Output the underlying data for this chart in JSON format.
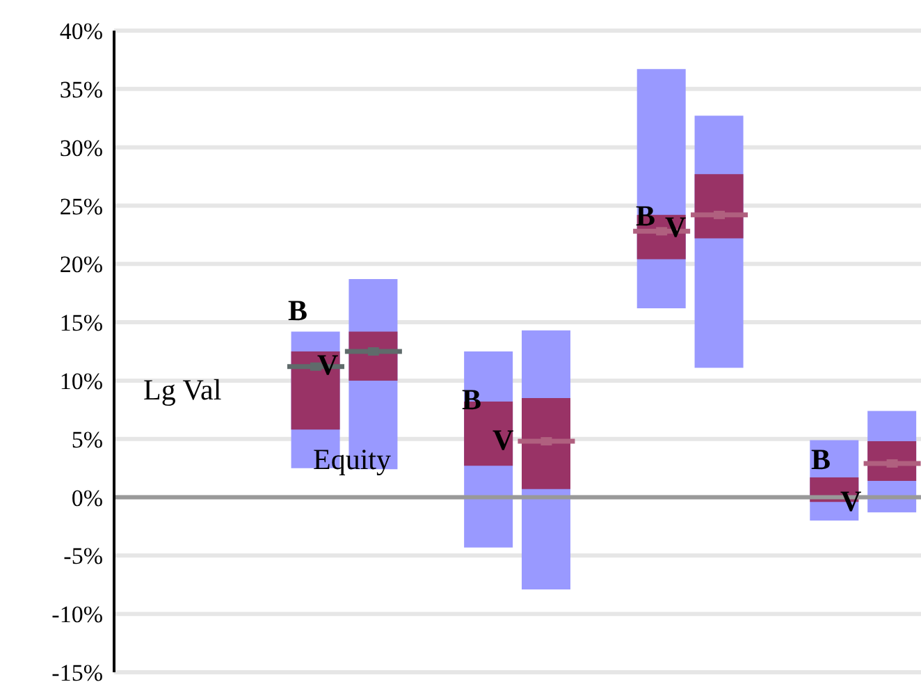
{
  "chart_data": {
    "type": "bar",
    "categories": [
      null,
      null,
      null,
      null,
      null,
      null,
      null,
      null,
      null,
      null,
      null,
      null,
      null,
      null
    ],
    "series": [
      {
        "color": "#9999ff",
        "base": [
          null,
          null,
          null,
          2.5,
          2.4,
          null,
          -4.3,
          -7.9,
          null,
          16.2,
          11.1,
          null,
          -2.0,
          -1.3
        ],
        "values": [
          null,
          null,
          null,
          11.7,
          16.3,
          null,
          16.8,
          22.2,
          null,
          20.5,
          21.6,
          null,
          6.9,
          8.7
        ]
      },
      {
        "color": "#993366",
        "base": [
          null,
          null,
          null,
          5.8,
          10.0,
          null,
          2.7,
          0.7,
          null,
          20.4,
          22.2,
          null,
          -0.4,
          1.4
        ],
        "values": [
          null,
          null,
          null,
          6.7,
          4.2,
          null,
          5.5,
          7.8,
          null,
          3.8,
          5.5,
          null,
          2.1,
          3.4
        ]
      },
      {
        "type": "scatter",
        "color": "#5f6b6b",
        "colors": [
          null,
          null,
          null,
          "#5f6b6b",
          "#5f6b6b",
          null,
          null,
          "#b0607f",
          null,
          "#b0607f",
          "#b0607f",
          null,
          null,
          "#b0607f"
        ],
        "values": [
          null,
          null,
          null,
          11.2,
          12.5,
          null,
          null,
          4.8,
          null,
          22.8,
          24.2,
          null,
          null,
          2.9
        ]
      }
    ],
    "ylim": [
      -15,
      40
    ],
    "yticks": [
      {
        "value": -15,
        "label": "-15%"
      },
      {
        "value": -10,
        "label": "-10%"
      },
      {
        "value": -5,
        "label": "-5%"
      },
      {
        "value": 0,
        "label": "0%"
      },
      {
        "value": 5,
        "label": "5%"
      },
      {
        "value": 10,
        "label": "10%"
      },
      {
        "value": 15,
        "label": "15%"
      },
      {
        "value": 20,
        "label": "20%"
      },
      {
        "value": 25,
        "label": "25%"
      },
      {
        "value": 30,
        "label": "30%"
      },
      {
        "value": 35,
        "label": "35%"
      },
      {
        "value": 40,
        "label": "40%"
      }
    ],
    "grid": "y",
    "tick_labels": "y",
    "legend": false,
    "ref_lines": [
      {
        "axis": "y",
        "value": 0,
        "color": "#999999"
      }
    ],
    "annotations": [
      "Lg Val",
      "Equity",
      "B",
      "V",
      "B",
      "V",
      "B",
      "V",
      "B",
      "V"
    ]
  }
}
